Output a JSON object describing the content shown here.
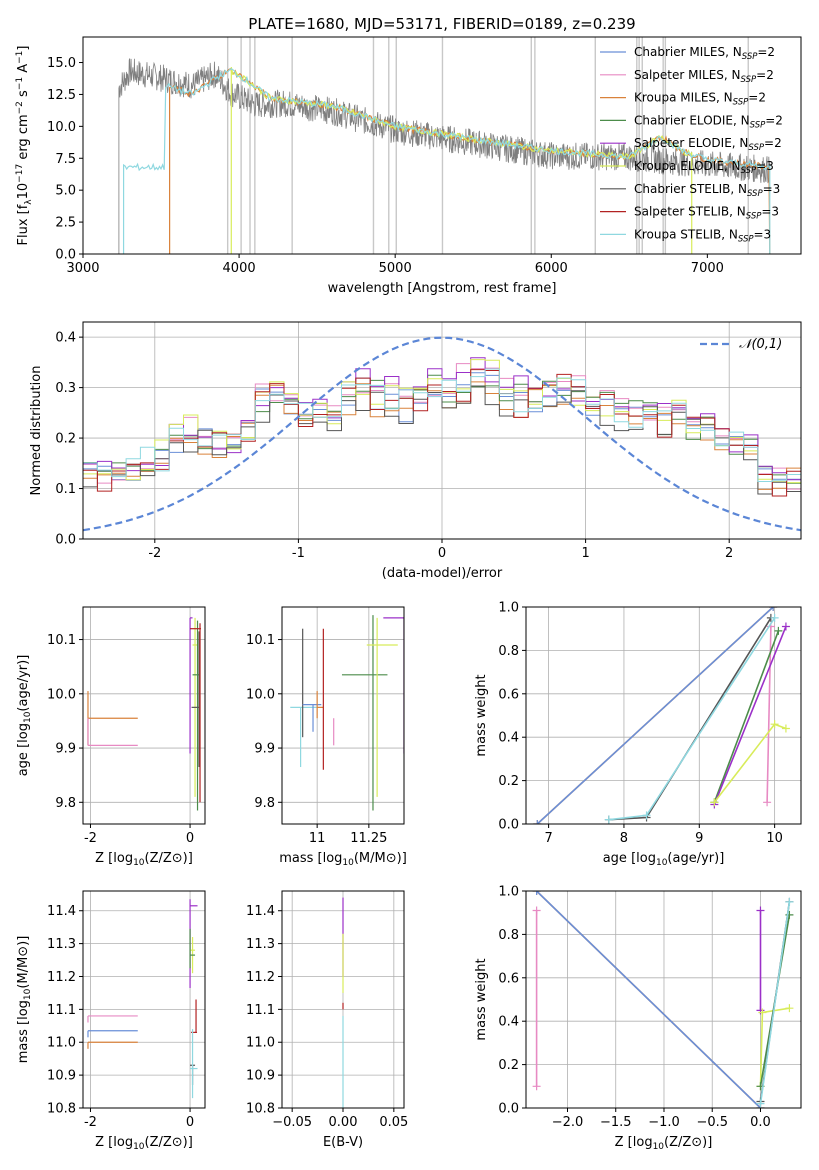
{
  "figure_title": "PLATE=1680, MJD=53171, FIBERID=0189, z=0.239",
  "colors": {
    "Chabrier MILES": "#6a8fd8",
    "Salpeter MILES": "#e78ac3",
    "Kroupa MILES": "#d9823b",
    "Chabrier ELODIE": "#4c8c4a",
    "Salpeter ELODIE": "#9b30c8",
    "Kroupa ELODIE": "#d8ec5a",
    "Chabrier STELIB": "#555555",
    "Salpeter STELIB": "#b22222",
    "Kroupa STELIB": "#8fd8e0",
    "data": "#7f7f7f",
    "mask": "#c8c8c8",
    "gauss": "#5b86d6"
  },
  "chart_data": [
    {
      "id": "spectrum",
      "type": "line",
      "xlabel": "wavelength [Angstrom, rest frame]",
      "ylabel": "Flux [f_λ 10^-17 erg cm^-2 s^-1 A^-1]",
      "xlim": [
        3000,
        7600
      ],
      "ylim": [
        0,
        17
      ],
      "xticks": [
        3000,
        4000,
        5000,
        6000,
        7000
      ],
      "yticks": [
        0.0,
        2.5,
        5.0,
        7.5,
        10.0,
        12.5,
        15.0
      ],
      "grid": false,
      "legend_position": "right",
      "legend": [
        {
          "label": "Chabrier MILES, N",
          "sub": "SSP",
          "suffix": "=2"
        },
        {
          "label": "Salpeter MILES, N",
          "sub": "SSP",
          "suffix": "=2"
        },
        {
          "label": "Kroupa MILES, N",
          "sub": "SSP",
          "suffix": "=2"
        },
        {
          "label": "Chabrier ELODIE, N",
          "sub": "SSP",
          "suffix": "=2"
        },
        {
          "label": "Salpeter ELODIE, N",
          "sub": "SSP",
          "suffix": "=2"
        },
        {
          "label": "Kroupa ELODIE, N",
          "sub": "SSP",
          "suffix": "=3"
        },
        {
          "label": "Chabrier STELIB, N",
          "sub": "SSP",
          "suffix": "=3"
        },
        {
          "label": "Salpeter STELIB, N",
          "sub": "SSP",
          "suffix": "=3"
        },
        {
          "label": "Kroupa STELIB, N",
          "sub": "SSP",
          "suffix": "=3"
        }
      ],
      "data_spectrum": {
        "start": 3230,
        "end": 7400,
        "anchors": [
          [
            3230,
            13.0
          ],
          [
            3300,
            14.3
          ],
          [
            3500,
            13.8
          ],
          [
            3700,
            13.2
          ],
          [
            3850,
            14.1
          ],
          [
            3950,
            12.6
          ],
          [
            4100,
            11.7
          ],
          [
            4300,
            11.8
          ],
          [
            4600,
            11.2
          ],
          [
            5000,
            9.7
          ],
          [
            5500,
            8.7
          ],
          [
            6000,
            7.7
          ],
          [
            6500,
            7.6
          ],
          [
            7000,
            7.0
          ],
          [
            7400,
            6.6
          ]
        ]
      },
      "model_anchors": [
        [
          3530,
          13.2
        ],
        [
          3700,
          12.5
        ],
        [
          3850,
          13.8
        ],
        [
          3950,
          14.4
        ],
        [
          4050,
          13.6
        ],
        [
          4200,
          12.2
        ],
        [
          4600,
          11.6
        ],
        [
          5000,
          10.0
        ],
        [
          5500,
          9.0
        ],
        [
          6000,
          8.1
        ],
        [
          6500,
          7.6
        ],
        [
          6700,
          9.2
        ],
        [
          6850,
          8.0
        ],
        [
          7000,
          7.4
        ],
        [
          7400,
          6.8
        ]
      ],
      "model_ranges": [
        {
          "model": "Kroupa MILES",
          "start": 3555,
          "end": 7400
        },
        {
          "model": "Kroupa ELODIE",
          "start": 3950,
          "end": 6900
        },
        {
          "model": "Kroupa STELIB",
          "start": 3260,
          "end": 7400
        }
      ],
      "mask_lines": [
        3927,
        4013,
        4070,
        4101,
        4340,
        4861,
        4959,
        5007,
        5303,
        5872,
        5895,
        6282,
        6548,
        6563,
        6583,
        6717,
        6731,
        7262
      ]
    },
    {
      "id": "residuals",
      "type": "histogram",
      "xlabel": "(data-model)/error",
      "ylabel": "Normed distribution",
      "xlim": [
        -2.5,
        2.5
      ],
      "ylim": [
        0,
        0.43
      ],
      "xticks": [
        -2,
        -1,
        0,
        1,
        2
      ],
      "yticks": [
        0.0,
        0.1,
        0.2,
        0.3,
        0.4
      ],
      "grid": true,
      "legend_position": "upper right",
      "legend_label": "𝒩(0,1)",
      "bin_width": 0.1,
      "base_profile": [
        0.13,
        0.12,
        0.13,
        0.14,
        0.15,
        0.16,
        0.19,
        0.21,
        0.2,
        0.19,
        0.18,
        0.21,
        0.27,
        0.29,
        0.26,
        0.25,
        0.26,
        0.23,
        0.28,
        0.3,
        0.28,
        0.27,
        0.26,
        0.28,
        0.29,
        0.28,
        0.3,
        0.32,
        0.31,
        0.29,
        0.27,
        0.28,
        0.29,
        0.3,
        0.28,
        0.27,
        0.26,
        0.25,
        0.24,
        0.25,
        0.23,
        0.24,
        0.22,
        0.21,
        0.2,
        0.18,
        0.17,
        0.12,
        0.11,
        0.12,
        0.1,
        0.11,
        0.08,
        0.07,
        0.08,
        0.09,
        0.07,
        0.06,
        0.07,
        0.06,
        0.05,
        0.06,
        0.05,
        0.04,
        0.05,
        0.06,
        0.05,
        0.04,
        0.05,
        0.04,
        0.05,
        0.04,
        0.03,
        0.04,
        0.05,
        0.04,
        0.03,
        0.04,
        0.03,
        0.03,
        0.04,
        0.03,
        0.03,
        0.04,
        0.03,
        0.03,
        0.03,
        0.03,
        0.03,
        0.03,
        0.03,
        0.03,
        0.03,
        0.03,
        0.03,
        0.03,
        0.03,
        0.03,
        0.03,
        0.03
      ],
      "series_offsets": [
        0.0,
        0.02,
        -0.01,
        0.01,
        0.03,
        0.02,
        -0.02,
        0.0,
        0.01
      ]
    },
    {
      "id": "age_vs_Z",
      "type": "errorbar",
      "xlabel": "Z [log10(Z/Z⊙)]",
      "ylabel": "age  [log10(age/yr)]",
      "xlim": [
        -2.15,
        0.3
      ],
      "ylim": [
        9.76,
        10.16
      ],
      "xticks": [
        -2,
        0
      ],
      "yticks": [
        9.8,
        9.9,
        10.0,
        10.1
      ],
      "grid": true,
      "points": [
        {
          "model": "Kroupa MILES",
          "x": -2.05,
          "xerr": [
            0,
            1.0
          ],
          "y": 9.955,
          "yerr": [
            0.05,
            0.05
          ]
        },
        {
          "model": "Salpeter MILES",
          "x": -2.05,
          "xerr": [
            0,
            1.0
          ],
          "y": 9.905,
          "yerr": [
            0,
            0.05
          ]
        },
        {
          "model": "Salpeter ELODIE",
          "x": 0.0,
          "xerr": [
            0,
            0.05
          ],
          "y": 10.14,
          "yerr": [
            0.25,
            0
          ]
        },
        {
          "model": "Kroupa ELODIE",
          "x": 0.1,
          "xerr": [
            0.05,
            0.05
          ],
          "y": 10.09,
          "yerr": [
            0.28,
            0.05
          ]
        },
        {
          "model": "Chabrier ELODIE",
          "x": 0.15,
          "xerr": [
            0.1,
            0.05
          ],
          "y": 10.035,
          "yerr": [
            0.25,
            0.1
          ]
        },
        {
          "model": "Chabrier STELIB",
          "x": 0.18,
          "xerr": [
            0.15,
            0.02
          ],
          "y": 9.975,
          "yerr": [
            0.11,
            0.14
          ]
        },
        {
          "model": "Salpeter STELIB",
          "x": 0.2,
          "xerr": [
            0.2,
            0.02
          ],
          "y": 10.12,
          "yerr": [
            0.32,
            0.01
          ]
        }
      ]
    },
    {
      "id": "age_vs_mass",
      "type": "errorbar",
      "xlabel": "mass [log10(M/M⊙)]",
      "ylabel": "",
      "xlim": [
        10.83,
        11.42
      ],
      "ylim": [
        9.76,
        10.16
      ],
      "xticks": [
        11.0,
        11.25
      ],
      "yticks": [
        9.8,
        9.9,
        10.0,
        10.1
      ],
      "grid": true,
      "points": [
        {
          "model": "Kroupa STELIB",
          "x": 10.92,
          "xerr": [
            0.05,
            0.08
          ],
          "y": 9.975,
          "yerr": [
            0.11,
            0.0
          ]
        },
        {
          "model": "Chabrier STELIB",
          "x": 10.93,
          "xerr": [
            0.0,
            0.0
          ],
          "y": 9.98,
          "yerr": [
            0.06,
            0.14
          ]
        },
        {
          "model": "Chabrier MILES",
          "x": 10.98,
          "xerr": [
            0.05,
            0.04
          ],
          "y": 9.98,
          "yerr": [
            0.05,
            0.0
          ]
        },
        {
          "model": "Kroupa MILES",
          "x": 11.0,
          "xerr": [
            0.0,
            0.03
          ],
          "y": 9.975,
          "yerr": [
            0.02,
            0.03
          ]
        },
        {
          "model": "Salpeter STELIB",
          "x": 11.03,
          "xerr": [
            0.0,
            0.0
          ],
          "y": 9.95,
          "yerr": [
            0.09,
            0.17
          ]
        },
        {
          "model": "Salpeter MILES",
          "x": 11.08,
          "xerr": [
            0.0,
            0.0
          ],
          "y": 9.905,
          "yerr": [
            0.0,
            0.05
          ]
        },
        {
          "model": "Chabrier ELODIE",
          "x": 11.27,
          "xerr": [
            0.15,
            0.07
          ],
          "y": 10.035,
          "yerr": [
            0.25,
            0.11
          ]
        },
        {
          "model": "Kroupa ELODIE",
          "x": 11.29,
          "xerr": [
            0.05,
            0.1
          ],
          "y": 10.09,
          "yerr": [
            0.28,
            0.05
          ]
        },
        {
          "model": "Salpeter ELODIE",
          "x": 11.42,
          "xerr": [
            0.1,
            0.0
          ],
          "y": 10.14,
          "yerr": [
            0.25,
            0.0
          ]
        }
      ]
    },
    {
      "id": "massweight_vs_age",
      "type": "line",
      "xlabel": "age  [log10(age/yr)]",
      "ylabel": "mass weight",
      "xlim": [
        6.7,
        10.35
      ],
      "ylim": [
        0,
        1
      ],
      "xticks": [
        7,
        8,
        9,
        10
      ],
      "yticks": [
        0.0,
        0.2,
        0.4,
        0.6,
        0.8,
        1.0
      ],
      "grid": true,
      "series": [
        {
          "model": "Kroupa MILES",
          "x": [
            6.85,
            9.98
          ],
          "y": [
            0.0,
            1.0
          ]
        },
        {
          "model": "Chabrier MILES",
          "x": [
            6.85,
            9.98
          ],
          "y": [
            0.0,
            1.0
          ]
        },
        {
          "model": "Salpeter MILES",
          "x": [
            9.9,
            9.95
          ],
          "y": [
            0.1,
            0.91
          ]
        },
        {
          "model": "Chabrier STELIB",
          "x": [
            7.8,
            8.3,
            9.95
          ],
          "y": [
            0.02,
            0.03,
            0.95
          ]
        },
        {
          "model": "Kroupa STELIB",
          "x": [
            7.8,
            8.3,
            10.0
          ],
          "y": [
            0.02,
            0.04,
            0.95
          ]
        },
        {
          "model": "Chabrier ELODIE",
          "x": [
            9.2,
            10.05
          ],
          "y": [
            0.1,
            0.89
          ]
        },
        {
          "model": "Salpeter ELODIE",
          "x": [
            9.2,
            10.15
          ],
          "y": [
            0.09,
            0.91
          ]
        },
        {
          "model": "Kroupa ELODIE",
          "x": [
            9.2,
            10.0,
            10.15
          ],
          "y": [
            0.1,
            0.46,
            0.44
          ]
        }
      ]
    },
    {
      "id": "mass_vs_Z",
      "type": "errorbar",
      "xlabel": "Z [log10(Z/Z⊙)]",
      "ylabel": "mass [log10(M/M⊙)]",
      "xlim": [
        -2.15,
        0.3
      ],
      "ylim": [
        10.8,
        11.46
      ],
      "xticks": [
        -2,
        0
      ],
      "yticks": [
        10.8,
        10.9,
        11.0,
        11.1,
        11.2,
        11.3,
        11.4
      ],
      "grid": true,
      "points": [
        {
          "model": "Salpeter MILES",
          "x": -2.05,
          "xerr": [
            0,
            1.0
          ],
          "y": 11.08,
          "yerr": [
            0.02,
            0.0
          ]
        },
        {
          "model": "Chabrier MILES",
          "x": -2.05,
          "xerr": [
            0,
            1.0
          ],
          "y": 11.035,
          "yerr": [
            0.02,
            0.0
          ]
        },
        {
          "model": "Kroupa MILES",
          "x": -2.05,
          "xerr": [
            0,
            1.0
          ],
          "y": 11.0,
          "yerr": [
            0.02,
            0.0
          ]
        },
        {
          "model": "Salpeter ELODIE",
          "x": 0.0,
          "xerr": [
            0,
            0.15
          ],
          "y": 11.415,
          "yerr": [
            0.25,
            0.02
          ]
        },
        {
          "model": "Kroupa ELODIE",
          "x": 0.05,
          "xerr": [
            0.05,
            0.05
          ],
          "y": 11.28,
          "yerr": [
            0.07,
            0.04
          ]
        },
        {
          "model": "Chabrier ELODIE",
          "x": 0.0,
          "xerr": [
            0,
            0.1
          ],
          "y": 11.265,
          "yerr": [
            0.04,
            0.08
          ]
        },
        {
          "model": "Salpeter STELIB",
          "x": 0.12,
          "xerr": [
            0.1,
            0.02
          ],
          "y": 11.03,
          "yerr": [
            0.0,
            0.1
          ]
        },
        {
          "model": "Chabrier STELIB",
          "x": 0.05,
          "xerr": [
            0.05,
            0.05
          ],
          "y": 10.93,
          "yerr": [
            0.06,
            0.0
          ]
        },
        {
          "model": "Kroupa STELIB",
          "x": 0.05,
          "xerr": [
            0.05,
            0.1
          ],
          "y": 10.92,
          "yerr": [
            0.09,
            0.12
          ]
        }
      ]
    },
    {
      "id": "mass_vs_ebv",
      "type": "errorbar",
      "xlabel": "E(B-V)",
      "ylabel": "",
      "xlim": [
        -0.06,
        0.06
      ],
      "ylim": [
        10.8,
        11.46
      ],
      "xticks": [
        -0.05,
        0.0,
        0.05
      ],
      "xtick_labels": [
        "−0.05",
        "0.00",
        "0.05"
      ],
      "yticks": [
        10.8,
        10.9,
        11.0,
        11.1,
        11.2,
        11.3,
        11.4
      ],
      "grid": true,
      "points": [
        {
          "model": "Salpeter ELODIE",
          "x": 0.0,
          "xerr": [
            0,
            0
          ],
          "y": 11.2,
          "yerr": [
            0.0,
            0.24
          ]
        },
        {
          "model": "Kroupa ELODIE",
          "x": 0.0,
          "xerr": [
            0,
            0
          ],
          "y": 11.15,
          "yerr": [
            0.0,
            0.18
          ]
        },
        {
          "model": "Salpeter STELIB",
          "x": 0.0,
          "xerr": [
            0,
            0
          ],
          "y": 11.1,
          "yerr": [
            0.0,
            0.02
          ]
        },
        {
          "model": "Kroupa STELIB",
          "x": 0.0,
          "xerr": [
            0,
            0
          ],
          "y": 10.92,
          "yerr": [
            0.12,
            0.16
          ]
        }
      ]
    },
    {
      "id": "massweight_vs_Z",
      "type": "line",
      "xlabel": "Z [log10(Z/Z⊙)]",
      "ylabel": "mass weight",
      "xlim": [
        -2.43,
        0.42
      ],
      "ylim": [
        0,
        1
      ],
      "xticks": [
        -2.0,
        -1.5,
        -1.0,
        -0.5,
        0.0
      ],
      "xtick_labels": [
        "−2.0",
        "−1.5",
        "−1.0",
        "−0.5",
        "0.0"
      ],
      "yticks": [
        0.0,
        0.2,
        0.4,
        0.6,
        0.8,
        1.0
      ],
      "grid": true,
      "series": [
        {
          "model": "Kroupa MILES",
          "x": [
            -2.32,
            0.0
          ],
          "y": [
            1.0,
            0.0
          ]
        },
        {
          "model": "Chabrier MILES",
          "x": [
            -2.32,
            0.0
          ],
          "y": [
            1.0,
            0.0
          ]
        },
        {
          "model": "Salpeter MILES",
          "x": [
            -2.32,
            -2.32
          ],
          "y": [
            0.1,
            0.91
          ]
        },
        {
          "model": "Salpeter ELODIE",
          "x": [
            0.0,
            0.0
          ],
          "y": [
            0.45,
            0.91
          ]
        },
        {
          "model": "Kroupa ELODIE",
          "x": [
            0.0,
            0.02,
            0.3
          ],
          "y": [
            0.1,
            0.44,
            0.46
          ]
        },
        {
          "model": "Chabrier ELODIE",
          "x": [
            0.0,
            0.3
          ],
          "y": [
            0.1,
            0.89
          ]
        },
        {
          "model": "Chabrier STELIB",
          "x": [
            0.0,
            0.3
          ],
          "y": [
            0.03,
            0.95
          ]
        },
        {
          "model": "Kroupa STELIB",
          "x": [
            0.0,
            0.3
          ],
          "y": [
            0.02,
            0.95
          ]
        }
      ]
    }
  ]
}
